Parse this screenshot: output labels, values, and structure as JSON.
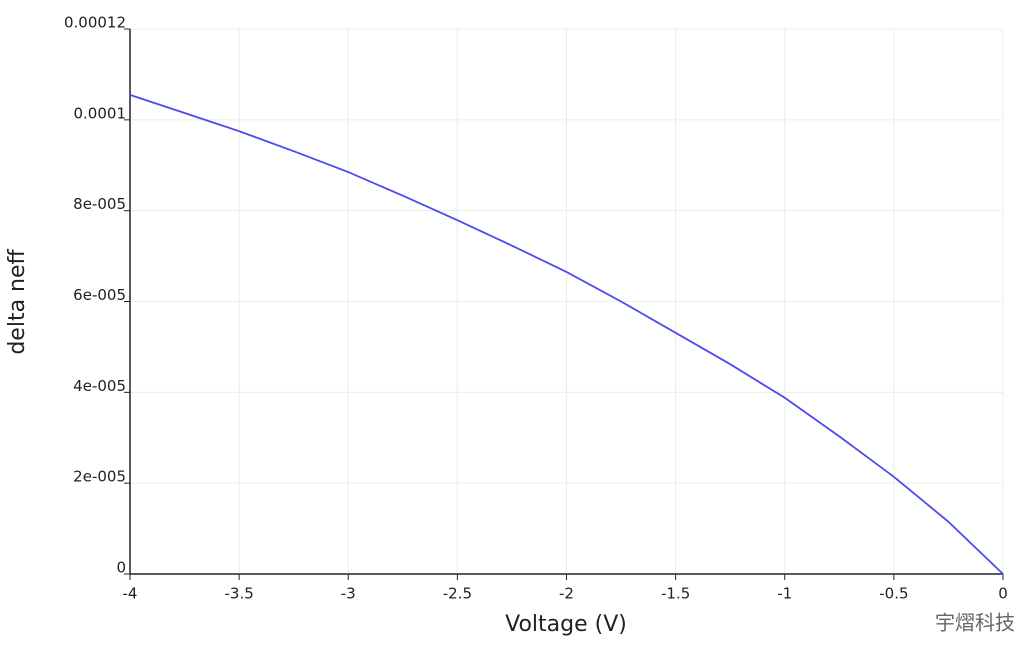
{
  "chart_data": {
    "type": "line",
    "x_label": "Voltage (V)",
    "y_label": "delta neff",
    "x": [
      -4,
      -3.75,
      -3.5,
      -3.25,
      -3,
      -2.75,
      -2.5,
      -2.25,
      -2,
      -1.75,
      -1.5,
      -1.25,
      -1,
      -0.75,
      -0.5,
      -0.25,
      0
    ],
    "series": [
      {
        "name": "delta neff",
        "color": "#4a4af0",
        "values": [
          0.0001055,
          0.0001015,
          9.75e-05,
          9.31e-05,
          8.85e-05,
          8.33e-05,
          7.79e-05,
          7.23e-05,
          6.65e-05,
          6e-05,
          5.31e-05,
          4.62e-05,
          3.88e-05,
          3.03e-05,
          2.14e-05,
          1.15e-05,
          0
        ]
      }
    ],
    "xlim": [
      -4,
      0
    ],
    "xticks": [
      -4,
      -3.5,
      -3,
      -2.5,
      -2,
      -1.5,
      -1,
      -0.5,
      0
    ],
    "ylim": [
      0,
      0.00012
    ],
    "yticks": [
      0,
      {
        "value": 2e-05,
        "label": "2e-005"
      },
      {
        "value": 4e-05,
        "label": "4e-005"
      },
      {
        "value": 6e-05,
        "label": "6e-005"
      },
      {
        "value": 8e-05,
        "label": "8e-005"
      },
      0.0001,
      0.00012
    ],
    "grid": true,
    "watermark": "宇熠科技"
  }
}
